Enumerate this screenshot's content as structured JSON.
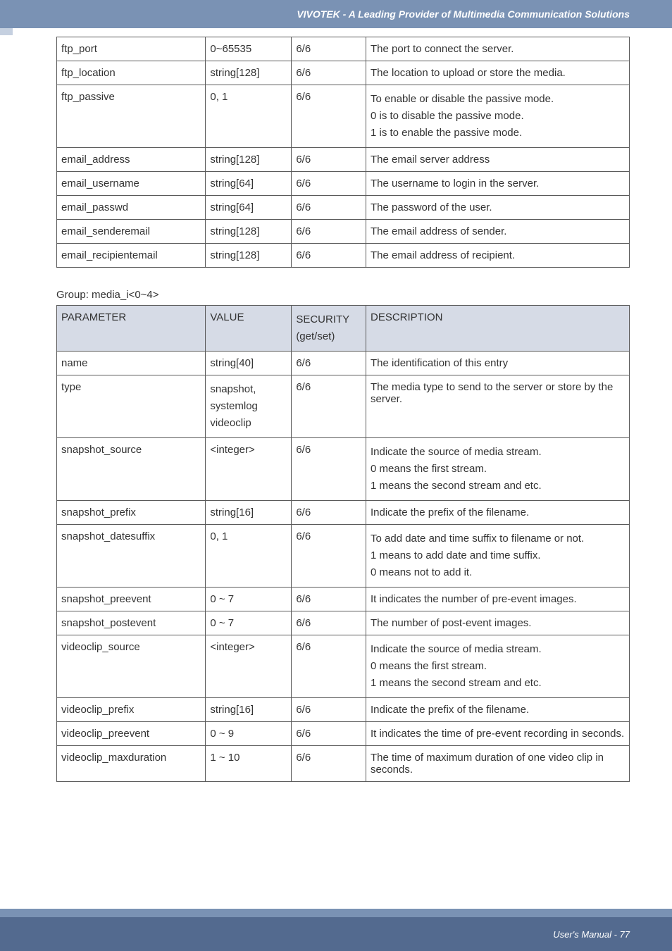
{
  "header": {
    "title": "VIVOTEK - A Leading Provider of Multimedia Communication Solutions"
  },
  "table1": {
    "rows": [
      {
        "param": "ftp_port",
        "value": "0~65535",
        "security": "6/6",
        "desc": "The port to connect the server."
      },
      {
        "param": "ftp_location",
        "value": "string[128]",
        "security": "6/6",
        "desc": "The location to upload or store the media."
      },
      {
        "param": "ftp_passive",
        "value": "0, 1",
        "security": "6/6",
        "desc": "To enable or disable the passive mode.\n0 is to disable the passive mode.\n1 is to enable the passive mode."
      },
      {
        "param": "email_address",
        "value": "string[128]",
        "security": "6/6",
        "desc": "The email server address"
      },
      {
        "param": "email_username",
        "value": "string[64]",
        "security": "6/6",
        "desc": "The username to login in the server."
      },
      {
        "param": "email_passwd",
        "value": "string[64]",
        "security": "6/6",
        "desc": "The password of the user."
      },
      {
        "param": "email_senderemail",
        "value": "string[128]",
        "security": "6/6",
        "desc": "The email address of sender."
      },
      {
        "param": "email_recipientemail",
        "value": "string[128]",
        "security": "6/6",
        "desc": "The email address of recipient."
      }
    ]
  },
  "group_label": "Group: media_i<0~4>",
  "table2": {
    "headers": {
      "c1": "PARAMETER",
      "c2": "VALUE",
      "c3": "SECURITY\n(get/set)",
      "c4": "DESCRIPTION"
    },
    "rows": [
      {
        "param": "name",
        "value": "string[40]",
        "security": "6/6",
        "desc": "The identification of this entry"
      },
      {
        "param": "type",
        "value": "snapshot,\nsystemlog\nvideoclip",
        "security": "6/6",
        "desc": "The media type to send to the server or store by the server."
      },
      {
        "param": "snapshot_source",
        "value": "<integer>",
        "security": "6/6",
        "desc": "Indicate the source of media stream.\n0 means the first stream.\n1 means the second stream and etc."
      },
      {
        "param": "snapshot_prefix",
        "value": "string[16]",
        "security": "6/6",
        "desc": "Indicate the prefix of the filename."
      },
      {
        "param": "snapshot_datesuffix",
        "value": "0, 1",
        "security": "6/6",
        "desc": "To add date and time suffix to filename or not.\n1 means to add date and time suffix.\n0 means not to add it."
      },
      {
        "param": "snapshot_preevent",
        "value": "0 ~ 7",
        "security": "6/6",
        "desc": "It indicates the number of pre-event images."
      },
      {
        "param": "snapshot_postevent",
        "value": "0 ~ 7",
        "security": "6/6",
        "desc": "The number of post-event images."
      },
      {
        "param": "videoclip_source",
        "value": "<integer>",
        "security": "6/6",
        "desc": "Indicate the source of media stream.\n0 means the first stream.\n1 means the second stream and etc."
      },
      {
        "param": "videoclip_prefix",
        "value": "string[16]",
        "security": "6/6",
        "desc": "Indicate the prefix of the filename."
      },
      {
        "param": "videoclip_preevent",
        "value": "0 ~ 9",
        "security": "6/6",
        "desc": "It indicates the time of pre-event recording in seconds."
      },
      {
        "param": "videoclip_maxduration",
        "value": "1 ~ 10",
        "security": "6/6",
        "desc": "The time of maximum duration of one video clip in seconds."
      }
    ]
  },
  "footer": {
    "text": "User's Manual - 77"
  }
}
